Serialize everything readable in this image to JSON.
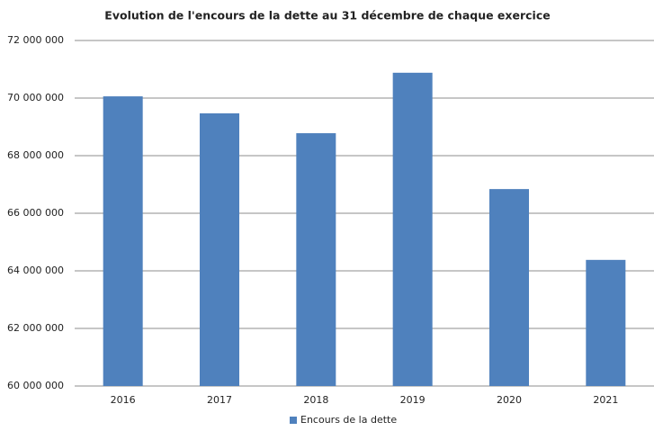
{
  "chart_data": {
    "type": "bar",
    "title": "Evolution de l'encours de la dette au 31 décembre de chaque exercice",
    "categories": [
      "2016",
      "2017",
      "2018",
      "2019",
      "2020",
      "2021"
    ],
    "series": [
      {
        "name": "Encours de la dette",
        "color": "#4f81bd",
        "values": [
          70060000,
          69470000,
          68780000,
          70880000,
          66840000,
          64380000
        ]
      }
    ],
    "ylim": [
      60000000,
      72000000
    ],
    "yticks": [
      {
        "value": 60000000,
        "label": "60 000 000"
      },
      {
        "value": 62000000,
        "label": "62 000 000"
      },
      {
        "value": 64000000,
        "label": "64 000 000"
      },
      {
        "value": 66000000,
        "label": "66 000 000"
      },
      {
        "value": 68000000,
        "label": "68 000 000"
      },
      {
        "value": 70000000,
        "label": "70 000 000"
      },
      {
        "value": 72000000,
        "label": "72 000 000"
      }
    ],
    "grid": true,
    "legend": "bottom"
  }
}
